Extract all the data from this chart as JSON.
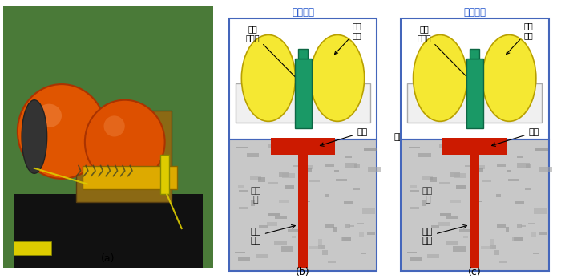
{
  "panel_b_title": "投放观测",
  "panel_c_title": "释放回收",
  "panel_a_label": "(a)",
  "panel_b_label": "(b)",
  "panel_c_label": "(c)",
  "label_acoustic": "声学\n释放器",
  "label_recorder": "记录\n单元",
  "label_seabed": "海底",
  "label_weight": "重块",
  "label_sediment": "沉积\n物",
  "label_probe": "温度\n探针",
  "bg_color": "#ffffff",
  "diagram_border_color": "#4466bb",
  "float_color": "#f5e832",
  "float_outline": "#b8a000",
  "frame_color": "#eeeeee",
  "frame_outline": "#999999",
  "green_color": "#1a9966",
  "green_outline": "#0d6644",
  "red_color": "#cc1a00",
  "sediment_color": "#c8c8c8",
  "sediment_texture_color": "#b0b0b0",
  "title_color": "#2255cc",
  "figsize": [
    7.0,
    3.48
  ],
  "dpi": 100
}
